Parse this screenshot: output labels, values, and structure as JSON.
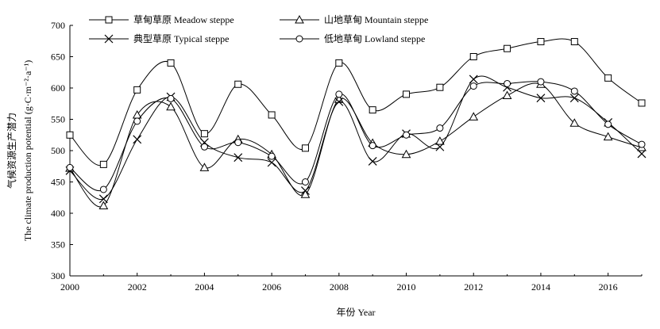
{
  "chart_data": {
    "type": "line",
    "xlabel": "年份 Year",
    "ylabel_cn": "气候资源生产潜力",
    "ylabel_en": "The climate production potential (g·C·m⁻²·a⁻¹)",
    "xlim": [
      2000,
      2017
    ],
    "ylim": [
      300,
      700
    ],
    "xticks": [
      2000,
      2002,
      2004,
      2006,
      2008,
      2010,
      2012,
      2014,
      2016
    ],
    "yticks": [
      300,
      350,
      400,
      450,
      500,
      550,
      600,
      650,
      700
    ],
    "grid": false,
    "legend_position": "top",
    "x": [
      2000,
      2001,
      2002,
      2003,
      2004,
      2005,
      2006,
      2007,
      2008,
      2009,
      2010,
      2011,
      2012,
      2013,
      2014,
      2015,
      2016,
      2017
    ],
    "series": [
      {
        "name": "草甸草原 Meadow steppe",
        "marker": "square",
        "values": [
          525,
          478,
          597,
          640,
          527,
          606,
          557,
          504,
          640,
          565,
          590,
          601,
          650,
          663,
          674,
          674,
          616,
          576
        ]
      },
      {
        "name": "山地草甸 Mountain steppe",
        "marker": "triangle",
        "values": [
          472,
          412,
          557,
          570,
          473,
          518,
          494,
          430,
          582,
          512,
          494,
          515,
          554,
          588,
          606,
          544,
          522,
          505
        ]
      },
      {
        "name": "典型草原 Typical steppe",
        "marker": "x",
        "values": [
          468,
          423,
          518,
          586,
          513,
          489,
          481,
          436,
          578,
          483,
          527,
          506,
          614,
          601,
          584,
          584,
          545,
          495
        ]
      },
      {
        "name": "低地草甸 Lowland steppe",
        "marker": "circle",
        "values": [
          473,
          438,
          547,
          583,
          506,
          513,
          491,
          450,
          590,
          508,
          525,
          536,
          603,
          607,
          610,
          595,
          542,
          510
        ]
      }
    ]
  }
}
